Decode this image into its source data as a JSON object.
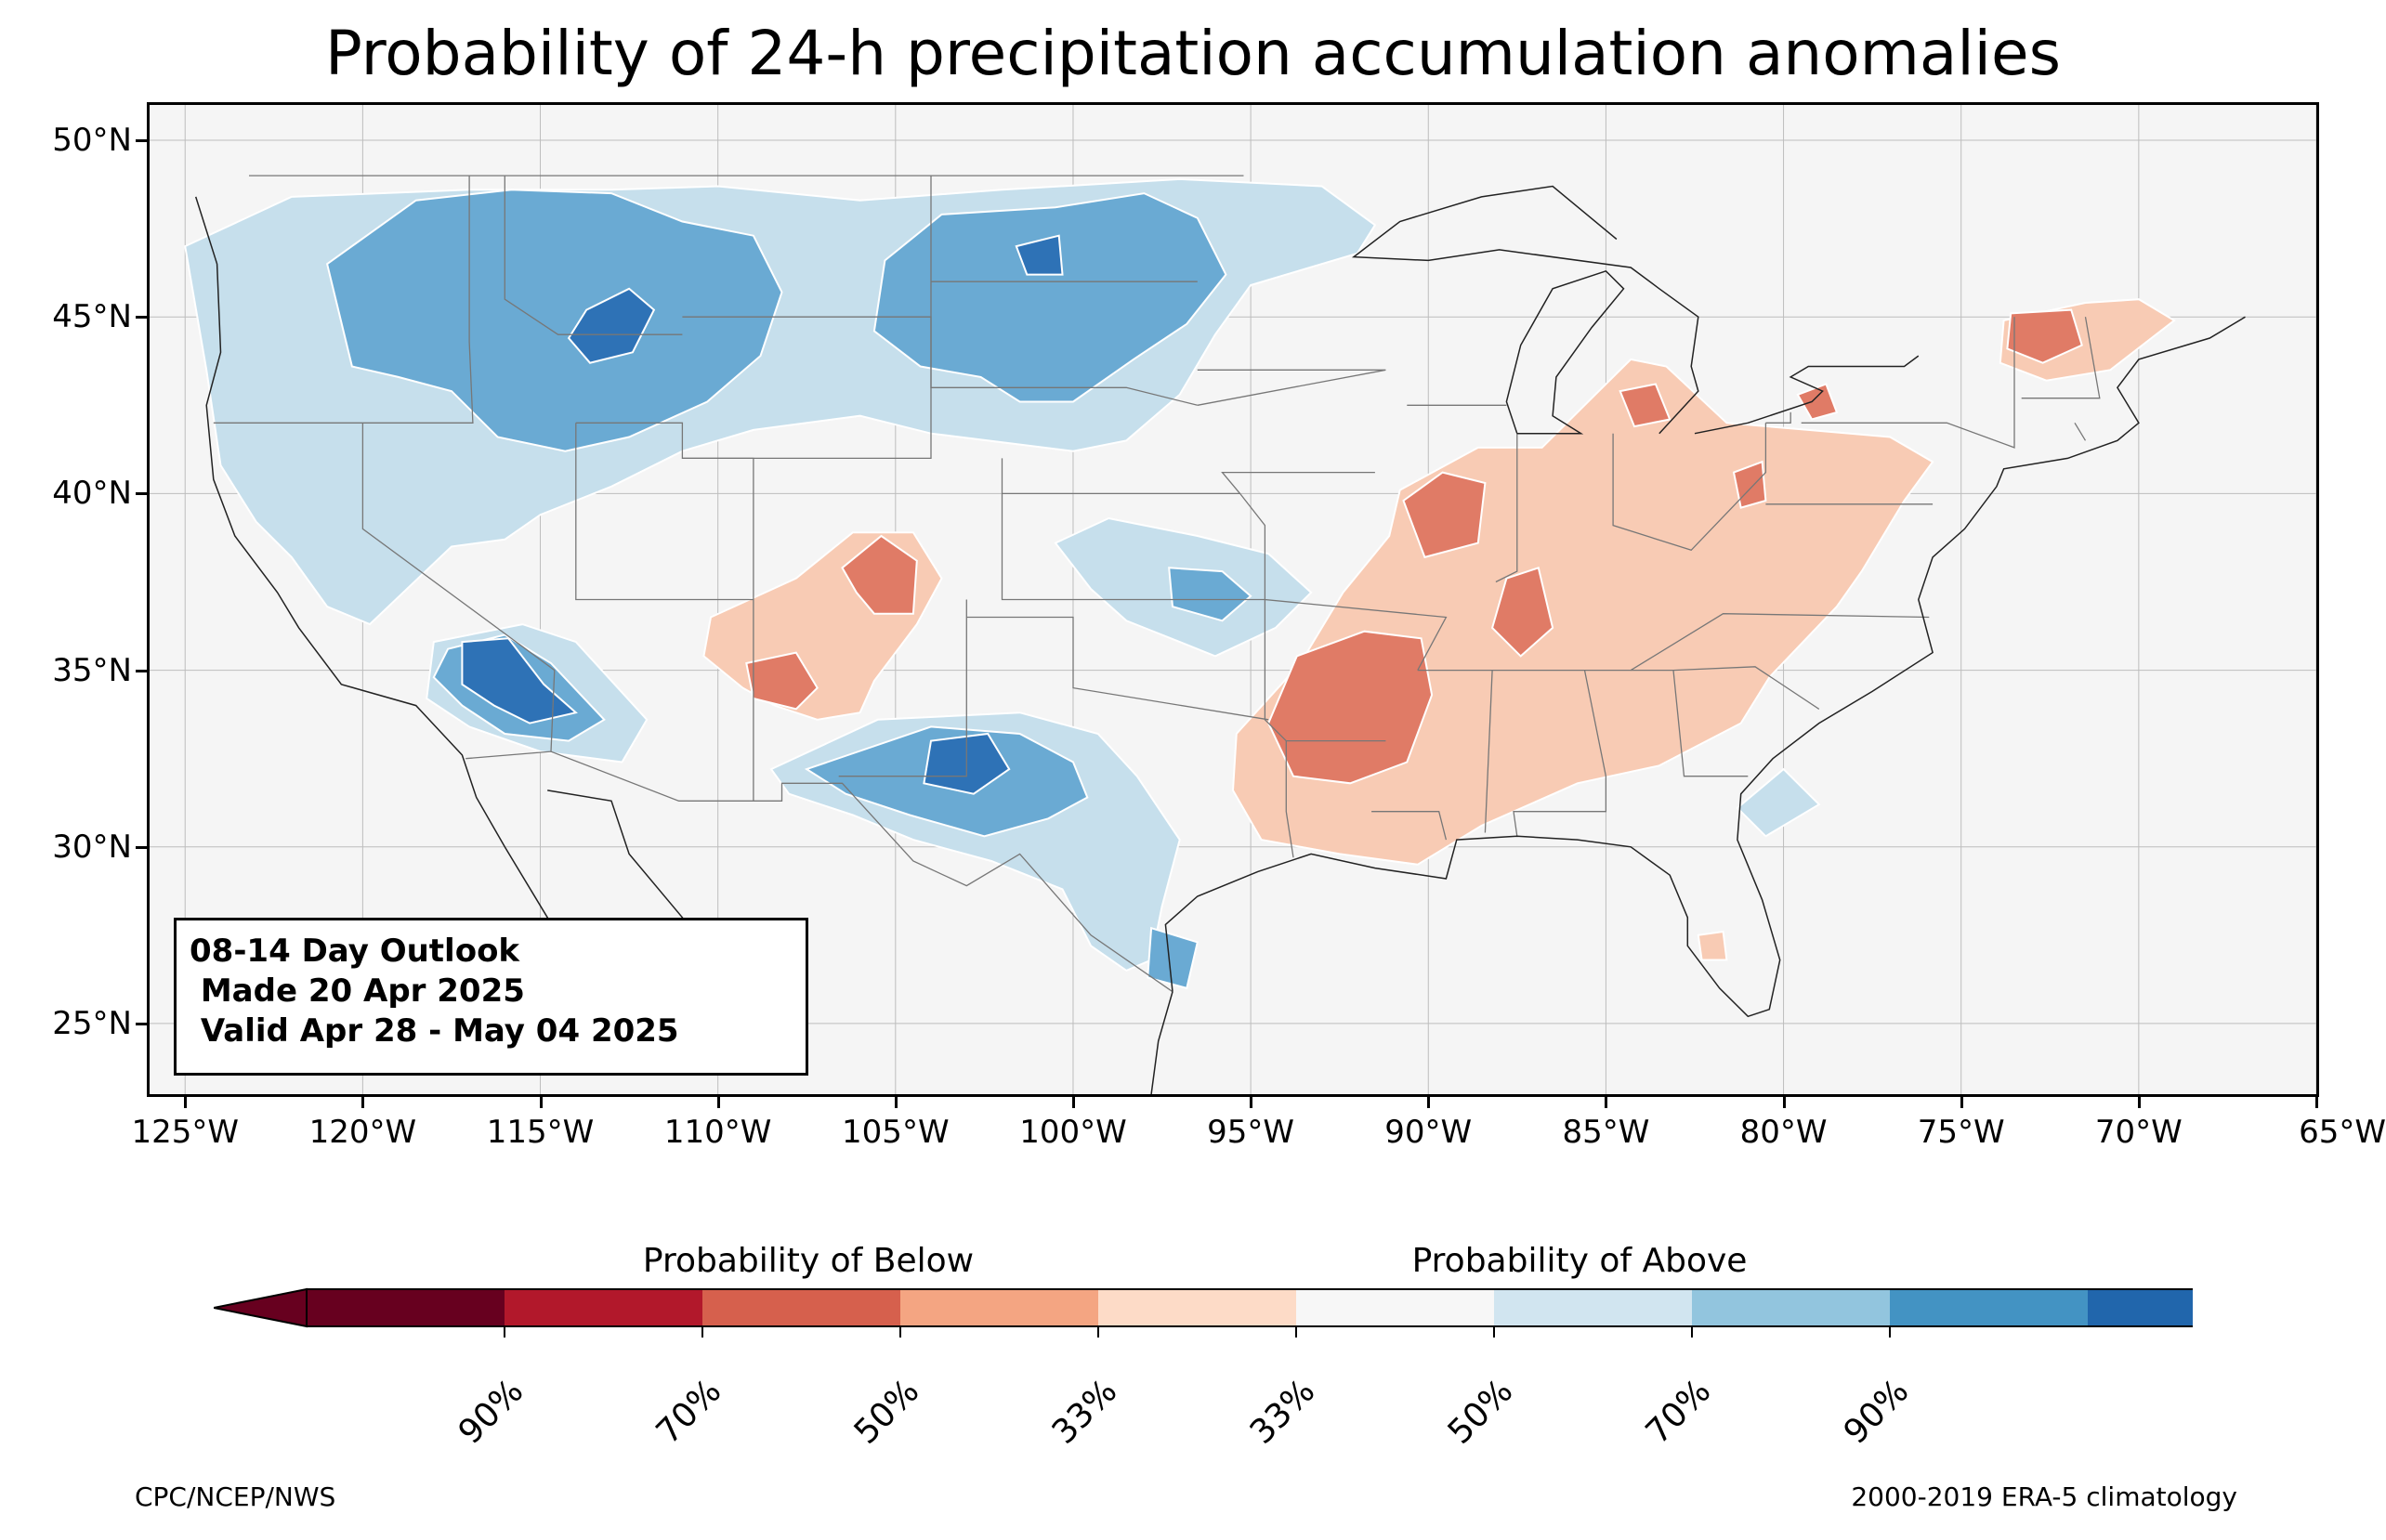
{
  "title": "Probability of 24-h precipitation accumulation anomalies",
  "map": {
    "extent": {
      "lon_min": -126,
      "lon_max": -65,
      "lat_min": 23,
      "lat_max": 51
    },
    "lat_ticks": [
      "50°N",
      "45°N",
      "40°N",
      "35°N",
      "30°N",
      "25°N"
    ],
    "lat_values": [
      50,
      45,
      40,
      35,
      30,
      25
    ],
    "lon_ticks": [
      "125°W",
      "120°W",
      "115°W",
      "110°W",
      "105°W",
      "100°W",
      "95°W",
      "90°W",
      "85°W",
      "80°W",
      "75°W",
      "70°W",
      "65°W"
    ],
    "lon_values": [
      -125,
      -120,
      -115,
      -110,
      -105,
      -100,
      -95,
      -90,
      -85,
      -80,
      -75,
      -70,
      -65
    ],
    "background_color": "#f5f5f5",
    "gridlines": true
  },
  "outlook_box": {
    "line1": "08-14 Day Outlook",
    "line2": " Made 20 Apr 2025",
    "line3": " Valid Apr 28 - May 04 2025"
  },
  "colorbar": {
    "below_label": "Probability of Below",
    "above_label": "Probability of Above",
    "tick_labels": [
      "90%",
      "70%",
      "50%",
      "33%",
      "33%",
      "50%",
      "70%",
      "90%"
    ],
    "colors": [
      "#67001f",
      "#b2182b",
      "#d6604d",
      "#f4a582",
      "#fddbc7",
      "#f7f7f7",
      "#d1e5f0",
      "#92c5de",
      "#4393c3",
      "#2166ac",
      "#053061"
    ],
    "extend_below_color": "#67001f",
    "extend_above_color": "#053061"
  },
  "credit_left": "CPC/NCEP/NWS",
  "credit_right": "2000-2019 ERA-5 climatology"
}
